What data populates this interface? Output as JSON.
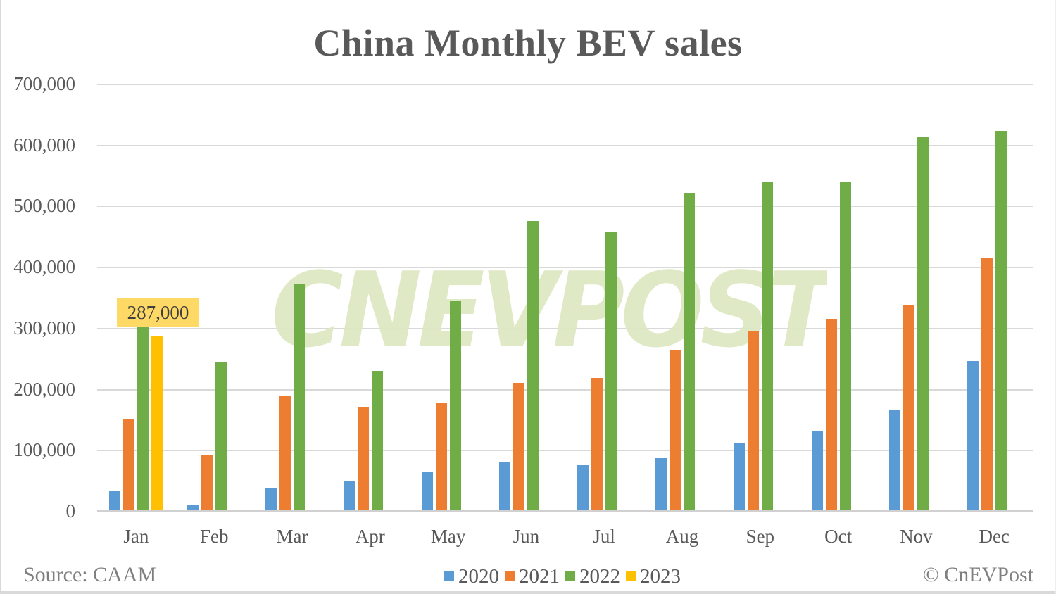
{
  "title": "China Monthly BEV sales",
  "footer": {
    "source": "Source: CAAM",
    "credit": "© CnEVPost"
  },
  "watermark": "CNEVPOST",
  "highlight_label": "287,000",
  "colors": {
    "2020": "#5b9bd5",
    "2021": "#ed7d31",
    "2022": "#70ad47",
    "2023": "#ffc000",
    "highlight_bg": "#ffd966",
    "gridline": "#d9d9d9",
    "text": "#595959"
  },
  "y_ticks": [
    "700,000",
    "600,000",
    "500,000",
    "400,000",
    "300,000",
    "200,000",
    "100,000",
    "0"
  ],
  "chart_data": {
    "type": "bar",
    "title": "China Monthly BEV sales",
    "xlabel": "",
    "ylabel": "",
    "ylim": [
      0,
      700000
    ],
    "yticks": [
      0,
      100000,
      200000,
      300000,
      400000,
      500000,
      600000,
      700000
    ],
    "grid": true,
    "legend_position": "bottom",
    "categories": [
      "Jan",
      "Feb",
      "Mar",
      "Apr",
      "May",
      "Jun",
      "Jul",
      "Aug",
      "Sep",
      "Oct",
      "Nov",
      "Dec"
    ],
    "series": [
      {
        "name": "2020",
        "color": "#5b9bd5",
        "values": [
          33000,
          9000,
          38000,
          50000,
          63000,
          81000,
          76000,
          87000,
          111000,
          132000,
          165000,
          246000
        ]
      },
      {
        "name": "2021",
        "color": "#ed7d31",
        "values": [
          150000,
          91000,
          189000,
          169000,
          178000,
          210000,
          218000,
          264000,
          295000,
          315000,
          338000,
          414000
        ]
      },
      {
        "name": "2022",
        "color": "#70ad47",
        "values": [
          305000,
          245000,
          372000,
          230000,
          345000,
          475000,
          457000,
          521000,
          538000,
          540000,
          614000,
          623000
        ]
      },
      {
        "name": "2023",
        "color": "#ffc000",
        "values": [
          287000,
          null,
          null,
          null,
          null,
          null,
          null,
          null,
          null,
          null,
          null,
          null
        ]
      }
    ],
    "annotations": [
      {
        "category": "Jan",
        "series": "2023",
        "text": "287,000"
      }
    ],
    "source": "Source: CAAM",
    "credit": "© CnEVPost"
  }
}
